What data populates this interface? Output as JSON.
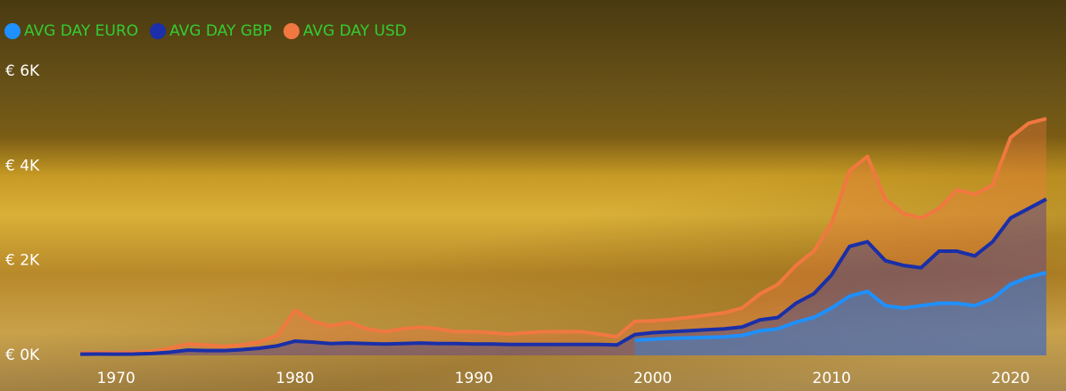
{
  "chart_data": {
    "type": "area",
    "x": [
      1968,
      1969,
      1970,
      1971,
      1972,
      1973,
      1974,
      1975,
      1976,
      1977,
      1978,
      1979,
      1980,
      1981,
      1982,
      1983,
      1984,
      1985,
      1986,
      1987,
      1988,
      1989,
      1990,
      1991,
      1992,
      1993,
      1994,
      1995,
      1996,
      1997,
      1998,
      1999,
      2000,
      2001,
      2002,
      2003,
      2004,
      2005,
      2006,
      2007,
      2008,
      2009,
      2010,
      2011,
      2012,
      2013,
      2014,
      2015,
      2016,
      2017,
      2018,
      2019,
      2020,
      2021,
      2022
    ],
    "series": [
      {
        "name": "AVG DAY EURO",
        "color": "#1e90ff",
        "values": [
          null,
          null,
          null,
          null,
          null,
          null,
          null,
          null,
          null,
          null,
          null,
          null,
          null,
          null,
          null,
          null,
          null,
          null,
          null,
          null,
          null,
          null,
          null,
          null,
          null,
          null,
          null,
          null,
          null,
          null,
          null,
          320,
          340,
          360,
          370,
          380,
          390,
          420,
          520,
          560,
          700,
          800,
          1000,
          1250,
          1350,
          1050,
          1000,
          1050,
          1100,
          1100,
          1050,
          1200,
          1500,
          1650,
          1750
        ]
      },
      {
        "name": "AVG DAY GBP",
        "color": "#1a2fa8",
        "values": [
          25,
          28,
          25,
          28,
          40,
          65,
          110,
          100,
          100,
          120,
          150,
          200,
          300,
          280,
          250,
          260,
          250,
          240,
          250,
          260,
          250,
          250,
          240,
          240,
          230,
          230,
          230,
          230,
          230,
          230,
          220,
          440,
          480,
          500,
          520,
          540,
          560,
          600,
          750,
          800,
          1100,
          1300,
          1700,
          2300,
          2400,
          2000,
          1900,
          1850,
          2200,
          2200,
          2100,
          2400,
          2900,
          3100,
          3300
        ]
      },
      {
        "name": "AVG DAY USD",
        "color": "#f07840",
        "values": [
          55,
          60,
          55,
          65,
          90,
          150,
          240,
          220,
          190,
          220,
          280,
          420,
          950,
          720,
          620,
          700,
          560,
          500,
          560,
          600,
          560,
          500,
          500,
          480,
          450,
          480,
          500,
          500,
          500,
          450,
          395,
          720,
          730,
          760,
          800,
          850,
          900,
          1000,
          1300,
          1500,
          1900,
          2200,
          2800,
          3900,
          4200,
          3300,
          3000,
          2900,
          3100,
          3500,
          3400,
          3600,
          4600,
          4900,
          5000
        ]
      }
    ],
    "xlim": [
      1968,
      2023
    ],
    "xticks": [
      1970,
      1980,
      1990,
      2000,
      2010,
      2020
    ],
    "ylim": [
      0,
      6000
    ],
    "yticks": [
      {
        "value": 0,
        "label": "€ 0K"
      },
      {
        "value": 2000,
        "label": "€ 2K"
      },
      {
        "value": 4000,
        "label": "€ 4K"
      },
      {
        "value": 6000,
        "label": "€ 6K"
      }
    ]
  }
}
